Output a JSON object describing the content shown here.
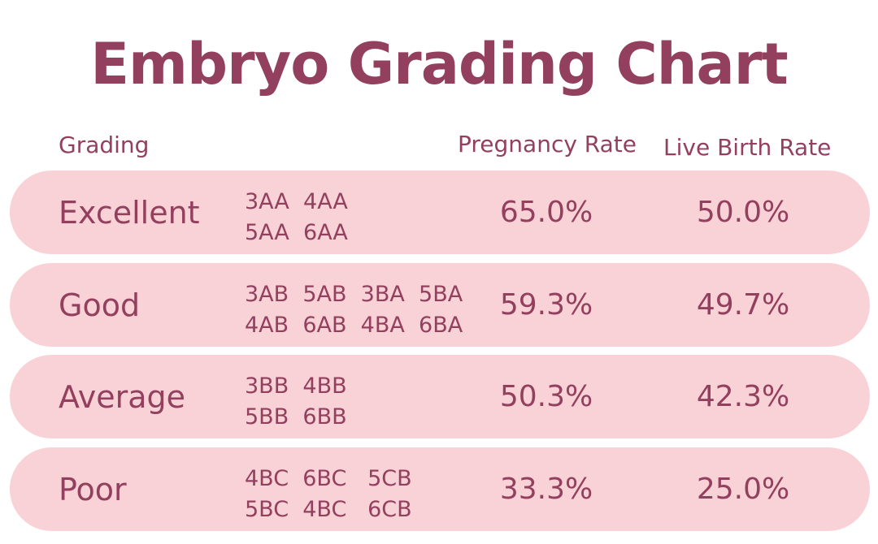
{
  "title": "Embryo Grading Chart",
  "chart_data": {
    "type": "table",
    "title": "Embryo Grading Chart",
    "columns": [
      "Grading",
      "",
      "Pregnancy Rate",
      "Live Birth Rate"
    ],
    "rows": [
      {
        "grade": "Excellent",
        "codes_line1": "3AA  4AA",
        "codes_line2": "5AA  6AA",
        "pregnancy_rate": "65.0%",
        "live_birth_rate": "50.0%"
      },
      {
        "grade": "Good",
        "codes_line1": "3AB  5AB  3BA  5BA",
        "codes_line2": "4AB  6AB  4BA  6BA",
        "pregnancy_rate": "59.3%",
        "live_birth_rate": "49.7%"
      },
      {
        "grade": "Average",
        "codes_line1": "3BB  4BB",
        "codes_line2": "5BB  6BB",
        "pregnancy_rate": "50.3%",
        "live_birth_rate": "42.3%"
      },
      {
        "grade": "Poor",
        "codes_line1": "4BC  6BC   5CB",
        "codes_line2": "5BC  4BC   6CB",
        "pregnancy_rate": "33.3%",
        "live_birth_rate": "25.0%"
      }
    ]
  },
  "colors": {
    "text": "#93405f",
    "row_background": "#f9d2d7",
    "page_background": "#ffffff"
  }
}
